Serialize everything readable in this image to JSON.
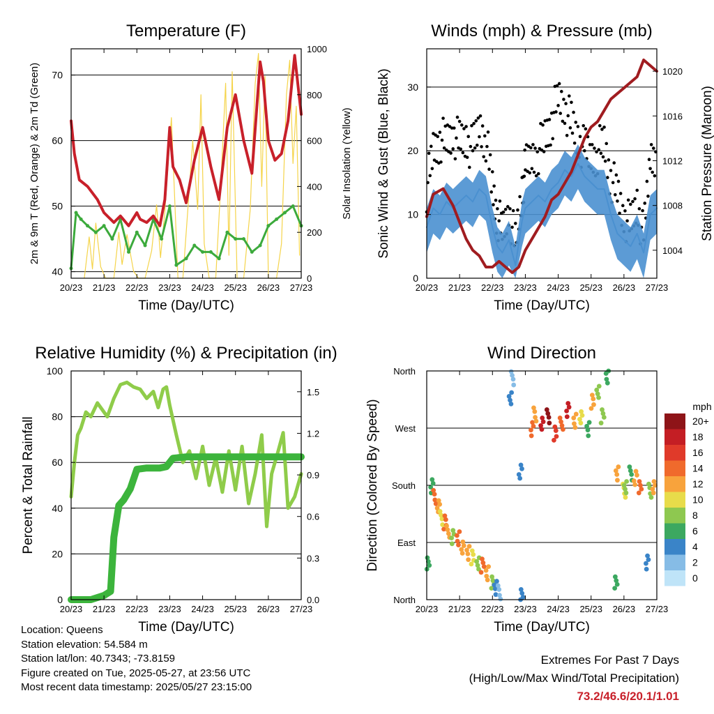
{
  "colors": {
    "temp": "#c8202a",
    "dewpoint": "#3caa3c",
    "solar": "#f5d44a",
    "wind": "#4a90d0",
    "gust": "#000000",
    "pressure": "#a01c20",
    "rh": "#8fcc4a",
    "precip": "#3cb43c",
    "extremes": "#c8202a"
  },
  "speed_colorbar": {
    "title": "mph",
    "labels": [
      "20+",
      "18",
      "16",
      "14",
      "12",
      "10",
      "8",
      "6",
      "4",
      "2",
      "0"
    ],
    "colors": [
      "#8e1418",
      "#c41e24",
      "#e03a2a",
      "#f06a2c",
      "#f8a33c",
      "#e8dc4a",
      "#8ec850",
      "#3ca860",
      "#3a84c8",
      "#86bce6",
      "#bfe4f8"
    ]
  },
  "chart_data": [
    {
      "id": "temperature",
      "type": "line",
      "title": "Temperature (F)",
      "xlabel": "Time (Day/UTC)",
      "ylabel": "2m & 9m T (Red, Orange) & 2m Td (Green)",
      "ylabel_right": "Solar Insolation (Yellow)",
      "xticks": [
        "20/23",
        "21/23",
        "22/23",
        "23/23",
        "24/23",
        "25/23",
        "26/23",
        "27/23"
      ],
      "ylim": [
        39,
        74
      ],
      "yticks": [
        40,
        50,
        60,
        70
      ],
      "ylim_right": [
        0,
        1000
      ],
      "yticks_right": [
        0,
        200,
        400,
        600,
        800,
        1000
      ],
      "grid_y": [
        40,
        50,
        60,
        70
      ],
      "series": [
        {
          "key": "temp",
          "x": [
            0,
            0.1,
            0.25,
            0.5,
            0.8,
            1.0,
            1.3,
            1.5,
            1.75,
            2.0,
            2.1,
            2.3,
            2.5,
            2.7,
            2.85,
            3.0,
            3.1,
            3.3,
            3.5,
            3.75,
            4.0,
            4.25,
            4.5,
            4.75,
            5.0,
            5.25,
            5.5,
            5.75,
            5.85,
            6.0,
            6.2,
            6.4,
            6.6,
            6.8,
            7.0
          ],
          "y": [
            63,
            58,
            54,
            53,
            51,
            49,
            47.5,
            48.5,
            47,
            49,
            48,
            47.5,
            48.5,
            47,
            51,
            62,
            56,
            54,
            50.5,
            57,
            62,
            56,
            51,
            62,
            67,
            60,
            55,
            72,
            69,
            60,
            57,
            58,
            63,
            73,
            64
          ]
        },
        {
          "key": "dewpoint",
          "x": [
            0,
            0.15,
            0.3,
            0.5,
            0.75,
            1.0,
            1.25,
            1.5,
            1.75,
            2.0,
            2.25,
            2.5,
            2.75,
            3.0,
            3.2,
            3.5,
            3.75,
            4.0,
            4.25,
            4.5,
            4.75,
            5.0,
            5.25,
            5.5,
            5.75,
            6.0,
            6.25,
            6.5,
            6.75,
            7.0
          ],
          "y": [
            40.5,
            49,
            48,
            47,
            46,
            47,
            45,
            48,
            43,
            46,
            44,
            48,
            45,
            50,
            41,
            42,
            44,
            43,
            43,
            42,
            46,
            45,
            45,
            43,
            44,
            47,
            48,
            49,
            50,
            47
          ]
        },
        {
          "key": "solar",
          "x": [
            0.4,
            0.55,
            0.65,
            0.75,
            0.9,
            1.05,
            1.3,
            1.45,
            1.55,
            1.7,
            1.9,
            2.05,
            2.25,
            2.45,
            2.6,
            2.72,
            2.85,
            3.05,
            3.25,
            3.4,
            3.55,
            3.7,
            3.85,
            3.95,
            4.05,
            4.2,
            4.4,
            4.55,
            4.7,
            4.8,
            4.9,
            5.05,
            5.25,
            5.45,
            5.6,
            5.7,
            5.8,
            5.9,
            6.0,
            6.25,
            6.4,
            6.55,
            6.65,
            6.75,
            6.85,
            6.95
          ],
          "y": [
            0,
            180,
            40,
            240,
            50,
            0,
            0,
            200,
            60,
            190,
            30,
            0,
            0,
            120,
            320,
            90,
            290,
            700,
            0,
            0,
            300,
            600,
            300,
            800,
            150,
            0,
            0,
            400,
            850,
            100,
            900,
            0,
            0,
            300,
            850,
            980,
            400,
            880,
            0,
            0,
            150,
            800,
            950,
            500,
            750,
            100
          ]
        }
      ]
    },
    {
      "id": "winds",
      "type": "line",
      "title": "Winds (mph) & Pressure (mb)",
      "xlabel": "Time (Day/UTC)",
      "ylabel": "Sonic Wind & Gust (Blue, Black)",
      "ylabel_right": "Station Pressure (Maroon)",
      "xticks": [
        "20/23",
        "21/23",
        "22/23",
        "23/23",
        "24/23",
        "25/23",
        "26/23",
        "27/23"
      ],
      "ylim": [
        0,
        36
      ],
      "yticks": [
        0,
        10,
        20,
        30
      ],
      "ylim_right": [
        1001.5,
        1022
      ],
      "yticks_right": [
        1004,
        1008,
        1012,
        1016,
        1020
      ],
      "grid_y": [
        0,
        10,
        20,
        30
      ],
      "series": [
        {
          "key": "wind",
          "x": [
            0,
            0.2,
            0.4,
            0.6,
            0.8,
            1.0,
            1.2,
            1.4,
            1.6,
            1.8,
            2.0,
            2.15,
            2.3,
            2.5,
            2.7,
            2.9,
            3.0,
            3.2,
            3.4,
            3.6,
            3.8,
            4.0,
            4.2,
            4.4,
            4.6,
            4.8,
            5.0,
            5.2,
            5.4,
            5.6,
            5.8,
            6.0,
            6.2,
            6.4,
            6.6,
            6.8,
            7.0
          ],
          "y": [
            8,
            11,
            10,
            12,
            11,
            12,
            13,
            12,
            14,
            13,
            8,
            5,
            4,
            6,
            2,
            9,
            11,
            12,
            13,
            12,
            14,
            15,
            17,
            16,
            18,
            16,
            15,
            14,
            14,
            10,
            7,
            6,
            5,
            7,
            4,
            10,
            11
          ]
        },
        {
          "key": "gust",
          "x": [
            0,
            0.2,
            0.4,
            0.6,
            0.8,
            1.0,
            1.2,
            1.4,
            1.6,
            1.8,
            2.0,
            2.15,
            2.3,
            2.5,
            2.7,
            2.9,
            3.0,
            3.2,
            3.4,
            3.6,
            3.8,
            4.0,
            4.2,
            4.4,
            4.6,
            4.8,
            5.0,
            5.2,
            5.4,
            5.6,
            5.8,
            6.0,
            6.2,
            6.4,
            6.6,
            6.8,
            7.0
          ],
          "y": [
            14,
            20,
            22,
            21,
            23,
            21,
            22,
            20,
            24,
            22,
            14,
            10,
            7,
            11,
            5,
            14,
            17,
            19,
            20,
            22,
            25,
            28,
            27,
            24,
            22,
            20,
            19,
            20,
            21,
            16,
            13,
            10,
            8,
            12,
            6,
            19,
            20
          ]
        },
        {
          "key": "pressure",
          "x": [
            0,
            0.2,
            0.5,
            0.8,
            1.0,
            1.2,
            1.4,
            1.6,
            1.8,
            2.0,
            2.2,
            2.4,
            2.6,
            2.8,
            3.0,
            3.2,
            3.4,
            3.6,
            3.8,
            4.0,
            4.2,
            4.4,
            4.6,
            4.8,
            5.0,
            5.2,
            5.4,
            5.6,
            5.8,
            6.0,
            6.2,
            6.4,
            6.6,
            6.8,
            7.0
          ],
          "y": [
            1007,
            1009,
            1009.5,
            1008,
            1006.5,
            1005,
            1004,
            1003.5,
            1002.5,
            1002.5,
            1003,
            1002.5,
            1002,
            1002.5,
            1004,
            1005,
            1006,
            1007,
            1008.5,
            1009,
            1010,
            1011,
            1012.5,
            1014,
            1015,
            1015.5,
            1016.5,
            1017.5,
            1018,
            1018.5,
            1019,
            1019.5,
            1021,
            1020.5,
            1020
          ]
        }
      ]
    },
    {
      "id": "humidity",
      "type": "line",
      "title": "Relative Humidity (%) & Precipitation (in)",
      "xlabel": "Time (Day/UTC)",
      "ylabel": "Percent & Total Rainfall",
      "xticks": [
        "20/23",
        "21/23",
        "22/23",
        "23/23",
        "24/23",
        "25/23",
        "26/23",
        "27/23"
      ],
      "ylim": [
        0,
        100
      ],
      "yticks": [
        0,
        20,
        40,
        60,
        80,
        100
      ],
      "ylim_right": [
        0,
        1.65
      ],
      "yticks_right": [
        "0.0",
        "0.3",
        "0.6",
        "0.9",
        "1.2",
        "1.5"
      ],
      "grid_y": [
        20,
        40,
        60,
        80
      ],
      "series": [
        {
          "key": "rh",
          "x": [
            0,
            0.1,
            0.2,
            0.3,
            0.45,
            0.6,
            0.8,
            1.0,
            1.1,
            1.3,
            1.5,
            1.7,
            1.9,
            2.1,
            2.3,
            2.5,
            2.65,
            2.8,
            2.9,
            3.0,
            3.2,
            3.4,
            3.6,
            3.8,
            4.0,
            4.2,
            4.4,
            4.6,
            4.8,
            5.0,
            5.2,
            5.4,
            5.6,
            5.8,
            5.95,
            6.1,
            6.3,
            6.45,
            6.6,
            6.8,
            7.0
          ],
          "y": [
            45,
            60,
            72,
            75,
            82,
            80,
            86,
            82,
            80,
            88,
            94,
            95,
            93,
            92,
            88,
            91,
            84,
            92,
            93,
            85,
            72,
            60,
            65,
            53,
            67,
            50,
            62,
            47,
            65,
            48,
            67,
            42,
            55,
            72,
            32,
            55,
            65,
            73,
            40,
            45,
            55
          ]
        },
        {
          "key": "precip",
          "x": [
            0,
            0.6,
            1.0,
            1.2,
            1.3,
            1.45,
            1.6,
            1.8,
            2.0,
            2.3,
            2.7,
            2.9,
            3.1,
            3.5,
            4.0,
            5.0,
            6.0,
            7.0
          ],
          "y": [
            0,
            0,
            0.03,
            0.06,
            0.45,
            0.68,
            0.72,
            0.8,
            0.94,
            0.95,
            0.95,
            0.96,
            1.02,
            1.03,
            1.03,
            1.03,
            1.03,
            1.03
          ]
        }
      ]
    },
    {
      "id": "direction",
      "type": "scatter",
      "title": "Wind Direction",
      "xlabel": "Time (Day/UTC)",
      "ylabel": "Direction (Colored By Speed)",
      "xticks": [
        "20/23",
        "21/23",
        "22/23",
        "23/23",
        "24/23",
        "25/23",
        "26/23",
        "27/23"
      ],
      "ylim": [
        0,
        360
      ],
      "yticks": [
        "North",
        "East",
        "South",
        "West",
        "North"
      ],
      "grid_y": [
        90,
        180,
        270
      ],
      "series": [
        {
          "key": "dir",
          "x": [
            0.05,
            0.15,
            0.25,
            0.35,
            0.45,
            0.55,
            0.65,
            0.8,
            0.95,
            1.1,
            1.25,
            1.4,
            1.55,
            1.7,
            1.85,
            2.0,
            2.1,
            2.2,
            2.55,
            2.6,
            2.85,
            2.9,
            3.2,
            3.3,
            3.5,
            3.7,
            3.9,
            4.1,
            4.3,
            4.5,
            4.7,
            4.9,
            5.05,
            5.2,
            5.35,
            5.5,
            5.75,
            5.8,
            6.0,
            6.05,
            6.2,
            6.35,
            6.5,
            6.7,
            6.8,
            6.9
          ],
          "y": [
            60,
            180,
            160,
            150,
            130,
            120,
            110,
            100,
            95,
            85,
            75,
            65,
            60,
            55,
            40,
            30,
            20,
            10,
            320,
            350,
            200,
            10,
            270,
            290,
            280,
            290,
            260,
            280,
            300,
            280,
            290,
            270,
            310,
            330,
            290,
            350,
            30,
            200,
            170,
            180,
            200,
            190,
            180,
            60,
            170,
            180
          ],
          "s": [
            6,
            6,
            14,
            12,
            10,
            14,
            12,
            8,
            14,
            12,
            12,
            10,
            8,
            14,
            12,
            8,
            4,
            2,
            4,
            2,
            4,
            4,
            14,
            12,
            18,
            20,
            16,
            14,
            18,
            12,
            10,
            6,
            12,
            8,
            8,
            6,
            6,
            12,
            10,
            8,
            6,
            12,
            14,
            4,
            8,
            12
          ]
        }
      ]
    }
  ],
  "info": [
    "Location: Queens",
    "Station elevation: 54.584 m",
    "Station lat/lon: 40.7343; -73.8159",
    "Figure created on Tue, 2025-05-27, at 23:56 UTC",
    "Most recent data timestamp: 2025/05/27 23:15:00"
  ],
  "extremes": {
    "title": "Extremes For Past 7 Days",
    "subtitle": "(High/Low/Max Wind/Total Precipitation)",
    "values": "73.2/46.6/20.1/1.01"
  }
}
